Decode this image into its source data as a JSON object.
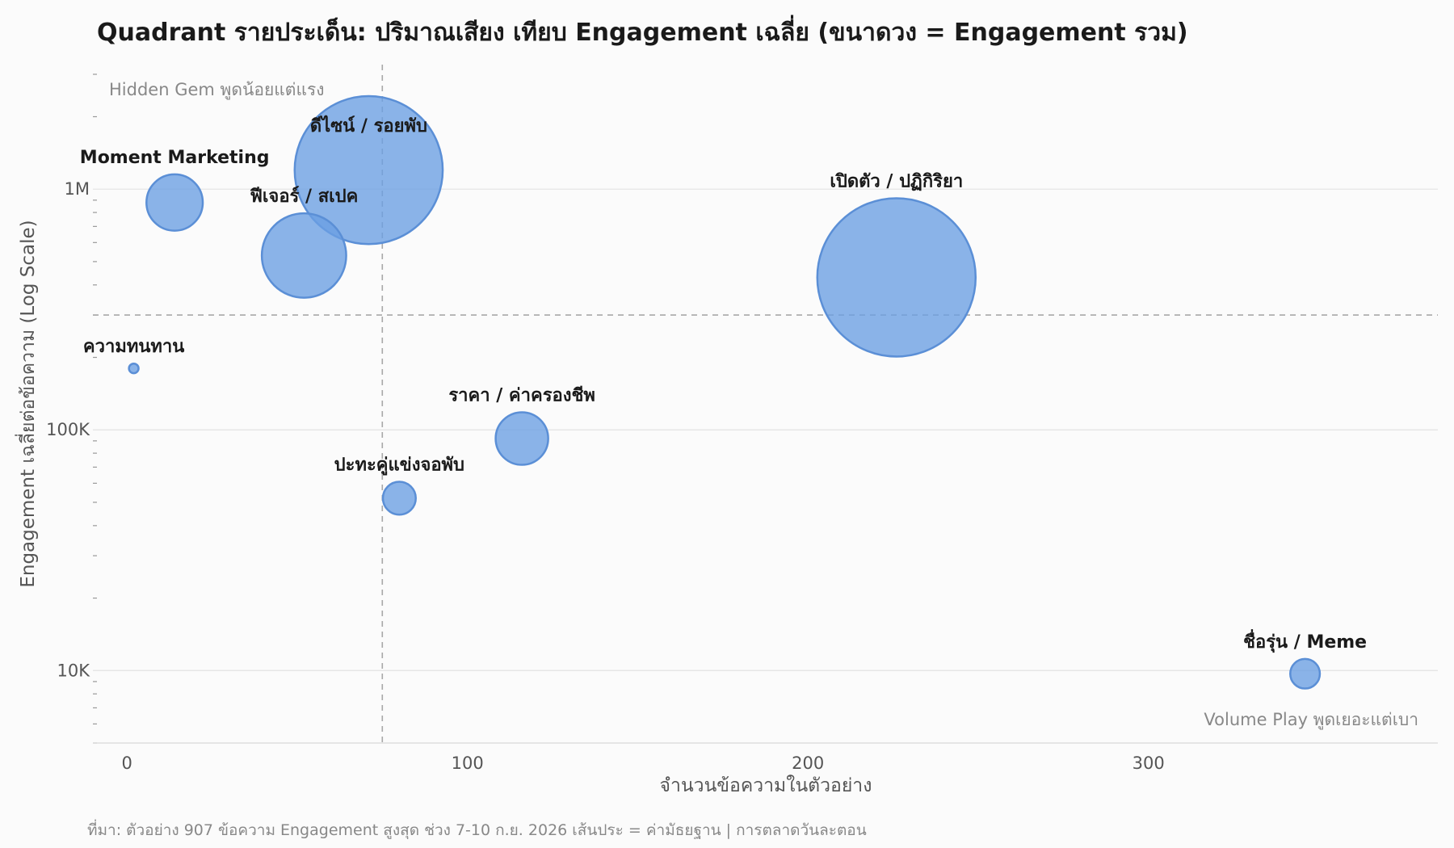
{
  "colors": {
    "bubble_fill": "#6a9fe3",
    "bubble_stroke": "#5b8fd6"
  },
  "chart_data": {
    "type": "scatter",
    "title": "Quadrant รายประเด็น: ปริมาณเสียง เทียบ Engagement เฉลี่ย (ขนาดวง = Engagement รวม)",
    "xlabel": "จำนวนข้อความในตัวอย่าง",
    "ylabel": "Engagement เฉลี่ยต่อข้อความ (Log Scale)",
    "x_scale": "linear",
    "y_scale": "log",
    "xlim": [
      -10,
      385
    ],
    "ylim": [
      5000,
      3000000
    ],
    "x_ticks": [
      0,
      100,
      200,
      300
    ],
    "x_tick_labels": [
      "0",
      "100",
      "200",
      "300"
    ],
    "y_ticks": [
      10000,
      100000,
      1000000
    ],
    "y_tick_labels": [
      "10K",
      "100K",
      "1M"
    ],
    "grid": "horizontal",
    "x_mean": 75,
    "y_mean": 300000,
    "bubble_size_meaning": "Engagement รวม",
    "points": [
      {
        "label": "ดีไซน์ / รอยพับ",
        "x": 71,
        "y": 1200000,
        "size": 85000000
      },
      {
        "label": "Moment Marketing",
        "x": 14,
        "y": 880000,
        "size": 12300000
      },
      {
        "label": "ฟีเจอร์ / สเปค",
        "x": 52,
        "y": 530000,
        "size": 27600000
      },
      {
        "label": "เปิดตัว / ปฏิกิริยา",
        "x": 226,
        "y": 430000,
        "size": 97200000
      },
      {
        "label": "ความทนทาน",
        "x": 2,
        "y": 180000,
        "size": 360000
      },
      {
        "label": "ราคา / ค่าครองชีพ",
        "x": 116,
        "y": 92000,
        "size": 10700000
      },
      {
        "label": "ปะทะคู่แข่งจอพับ",
        "x": 80,
        "y": 52000,
        "size": 4200000
      },
      {
        "label": "ชื่อรุ่น / Meme",
        "x": 346,
        "y": 9700,
        "size": 3400000
      }
    ],
    "quadrant_labels": {
      "top_left": "Hidden Gem พูดน้อยแต่แรง",
      "bottom_right": "Volume Play พูดเยอะแต่เบา"
    },
    "source": "ที่มา: ตัวอย่าง 907 ข้อความ Engagement สูงสุด ช่วง 7-10 ก.ย. 2026 เส้นประ = ค่ามัธยฐาน | การตลาดวันละตอน"
  }
}
